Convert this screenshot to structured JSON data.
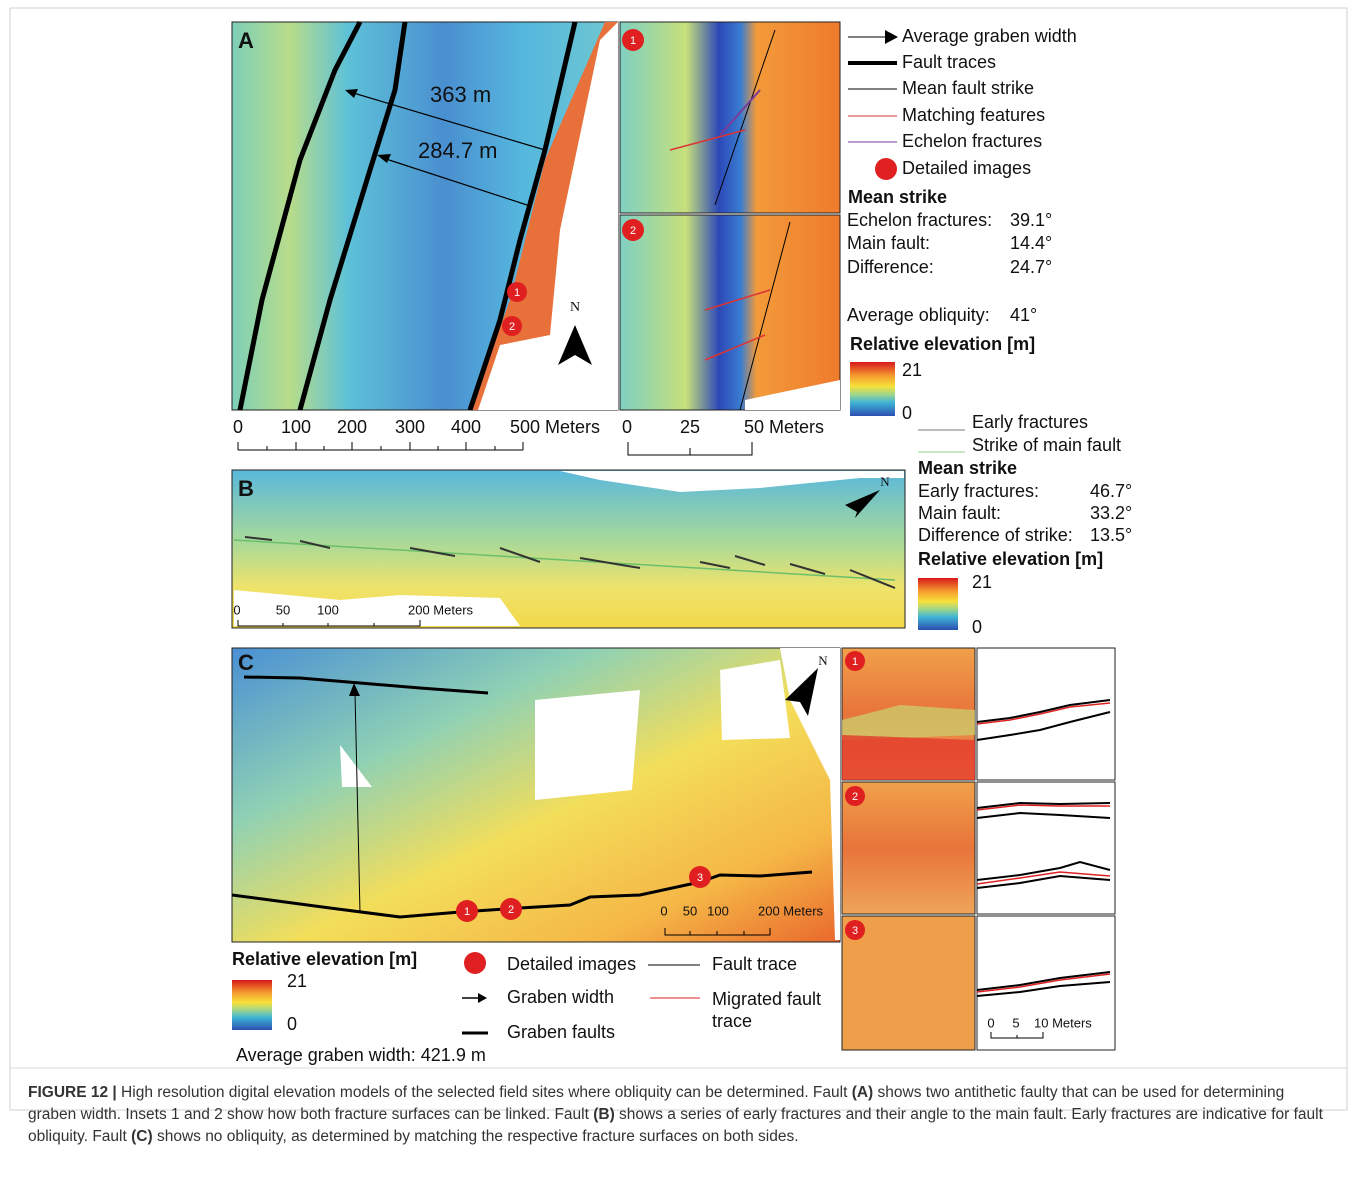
{
  "panel_a": {
    "label": "A",
    "distances": [
      "363 m",
      "284.7 m"
    ],
    "scale_main": [
      "0",
      "100",
      "200",
      "300",
      "400",
      "500 Meters"
    ],
    "markers": [
      "1",
      "2"
    ],
    "north": "N",
    "insets": [
      "1",
      "2"
    ],
    "scale_inset": [
      "0",
      "25",
      "50 Meters"
    ],
    "legend": [
      "Average graben width",
      "Fault traces",
      "Mean fault strike",
      "Matching features",
      "Echelon fractures",
      "Detailed images"
    ],
    "mean_strike_title": "Mean strike",
    "mean_strike": [
      [
        "Echelon fractures:",
        "39.1°"
      ],
      [
        "Main fault:",
        "14.4°"
      ],
      [
        "Difference:",
        "24.7°"
      ]
    ],
    "obliquity": [
      "Average obliquity:",
      "41°"
    ],
    "elevation_title": "Relative elevation [m]",
    "elevation_max": "21",
    "elevation_min": "0"
  },
  "panel_b": {
    "label": "B",
    "scale": [
      "0",
      "50",
      "100",
      "200 Meters"
    ],
    "north": "N",
    "legend": [
      "Early fractures",
      "Strike of main fault"
    ],
    "mean_strike_title": "Mean strike",
    "mean_strike": [
      [
        "Early fractures:",
        "46.7°"
      ],
      [
        "Main fault:",
        "33.2°"
      ],
      [
        "Difference of strike:",
        "13.5°"
      ]
    ],
    "elevation_title": "Relative elevation [m]",
    "elevation_max": "21",
    "elevation_min": "0"
  },
  "panel_c": {
    "label": "C",
    "markers": [
      "1",
      "2",
      "3"
    ],
    "scale": [
      "0",
      "50",
      "100",
      "200 Meters"
    ],
    "north": "N",
    "insets": [
      "1",
      "2",
      "3"
    ],
    "scale_inset": [
      "0",
      "5",
      "10 Meters"
    ],
    "elevation_title": "Relative elevation [m]",
    "elevation_max": "21",
    "elevation_min": "0",
    "legend": [
      "Detailed images",
      "Graben width",
      "Graben faults",
      "Fault trace",
      "Migrated fault trace"
    ],
    "average_width": "Average graben width: 421.9 m"
  },
  "caption": {
    "label": "FIGURE 12 |",
    "parts": [
      " High resolution digital elevation models of the selected field sites where obliquity can be determined. Fault ",
      "(A)",
      " shows two antithetic faulty that can be used for determining graben width. Insets 1 and 2 show how both fracture surfaces can be linked. Fault ",
      "(B)",
      " shows a series of early fractures and their angle to the main fault. Early fractures are indicative for fault obliquity. Fault ",
      "(C)",
      " shows no obliquity, as determined by matching the respective fracture surfaces on both sides."
    ]
  }
}
